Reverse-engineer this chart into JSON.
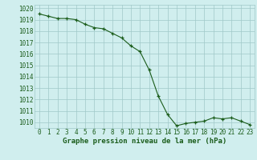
{
  "x": [
    0,
    1,
    2,
    3,
    4,
    5,
    6,
    7,
    8,
    9,
    10,
    11,
    12,
    13,
    14,
    15,
    16,
    17,
    18,
    19,
    20,
    21,
    22,
    23
  ],
  "y": [
    1019.5,
    1019.3,
    1019.1,
    1019.1,
    1019.0,
    1018.6,
    1018.3,
    1018.2,
    1017.8,
    1017.4,
    1016.7,
    1016.2,
    1014.6,
    1012.3,
    1010.7,
    1009.7,
    1009.9,
    1010.0,
    1010.1,
    1010.4,
    1010.3,
    1010.4,
    1010.1,
    1009.8
  ],
  "ylim": [
    1009.5,
    1020.3
  ],
  "xlim": [
    -0.5,
    23.5
  ],
  "yticks": [
    1010,
    1011,
    1012,
    1013,
    1014,
    1015,
    1016,
    1017,
    1018,
    1019,
    1020
  ],
  "xticks": [
    0,
    1,
    2,
    3,
    4,
    5,
    6,
    7,
    8,
    9,
    10,
    11,
    12,
    13,
    14,
    15,
    16,
    17,
    18,
    19,
    20,
    21,
    22,
    23
  ],
  "line_color": "#1a5c1a",
  "marker_color": "#1a5c1a",
  "bg_color": "#d0eeee",
  "grid_color": "#a0c8c8",
  "xlabel": "Graphe pression niveau de la mer (hPa)",
  "xlabel_color": "#1a5c1a",
  "tick_color": "#1a5c1a",
  "xlabel_fontsize": 6.5,
  "tick_fontsize": 5.5,
  "ytick_fontsize": 5.5
}
